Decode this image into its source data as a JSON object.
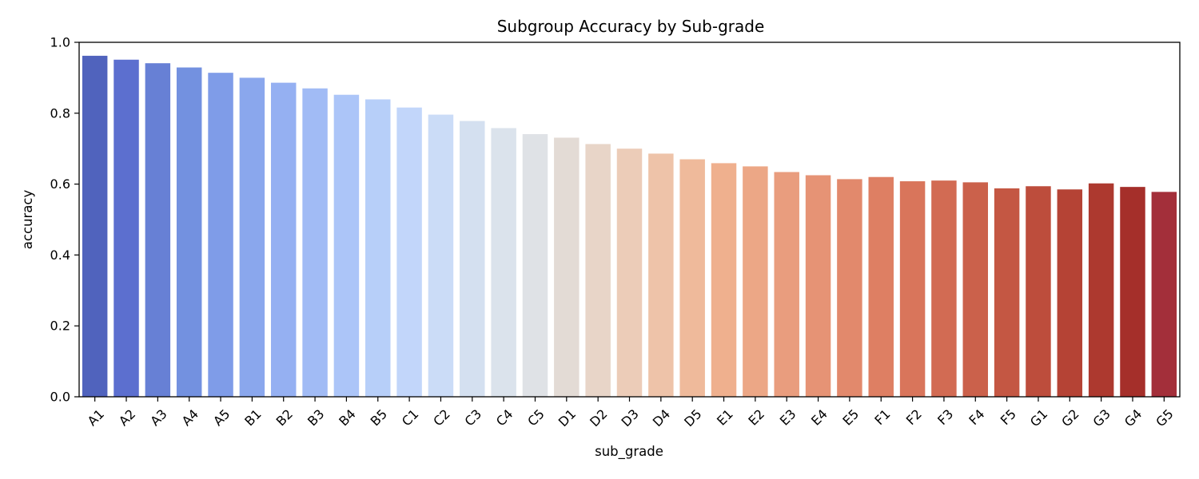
{
  "chart_data": {
    "type": "bar",
    "title": "Subgroup Accuracy by Sub-grade",
    "xlabel": "sub_grade",
    "ylabel": "accuracy",
    "ylim": [
      0,
      1.0
    ],
    "yticks": [
      "0.0",
      "0.2",
      "0.4",
      "0.6",
      "0.8",
      "1.0"
    ],
    "grid": false,
    "legend": "none",
    "colormap": "coolwarm",
    "categories": [
      "A1",
      "A2",
      "A3",
      "A4",
      "A5",
      "B1",
      "B2",
      "B3",
      "B4",
      "B5",
      "C1",
      "C2",
      "C3",
      "C4",
      "C5",
      "D1",
      "D2",
      "D3",
      "D4",
      "D5",
      "E1",
      "E2",
      "E3",
      "E4",
      "E5",
      "F1",
      "F2",
      "F3",
      "F4",
      "F5",
      "G1",
      "G2",
      "G3",
      "G4",
      "G5"
    ],
    "values": [
      0.962,
      0.951,
      0.941,
      0.929,
      0.914,
      0.9,
      0.886,
      0.87,
      0.852,
      0.839,
      0.816,
      0.796,
      0.778,
      0.758,
      0.741,
      0.731,
      0.713,
      0.7,
      0.686,
      0.67,
      0.659,
      0.65,
      0.634,
      0.625,
      0.614,
      0.62,
      0.608,
      0.61,
      0.605,
      0.588,
      0.594,
      0.585,
      0.602,
      0.592,
      0.578
    ],
    "colors": [
      "#5063bd",
      "#5c6fcf",
      "#6780d5",
      "#7391e0",
      "#7f9ce8",
      "#8aa7ed",
      "#95b0f2",
      "#a1bbf5",
      "#acc5f8",
      "#b7cff9",
      "#c2d6fa",
      "#cbdcf7",
      "#d4e0f0",
      "#dbe3ec",
      "#dfe2e6",
      "#e3dbd5",
      "#e8d5c8",
      "#ecccb8",
      "#eec3a9",
      "#efba9b",
      "#efb08e",
      "#eca786",
      "#e99d7e",
      "#e69375",
      "#e2896c",
      "#de7f63",
      "#d9755b",
      "#d26b53",
      "#cb614b",
      "#c45743",
      "#bd4d3c",
      "#b54335",
      "#ad392f",
      "#a52f2a",
      "#a32f3a"
    ]
  }
}
